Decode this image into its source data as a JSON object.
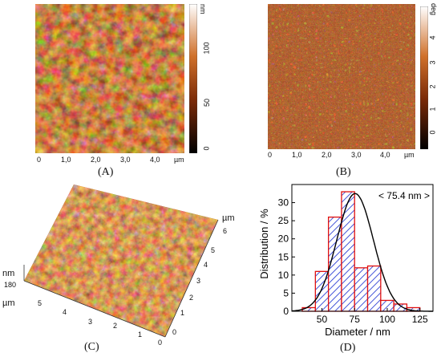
{
  "panels": {
    "A": {
      "label": "(A)",
      "x_ticks": [
        "0",
        "1,0",
        "2,0",
        "3,0",
        "4,0"
      ],
      "x_unit": "µm",
      "cbar_unit": "nm",
      "cbar_ticks": [
        "100",
        "50",
        "0"
      ]
    },
    "B": {
      "label": "(B)",
      "x_ticks": [
        "0",
        "1,0",
        "2,0",
        "3,0",
        "4,0"
      ],
      "x_unit": "µm",
      "cbar_unit": "deg",
      "cbar_ticks": [
        "4",
        "3",
        "2",
        "1",
        "0"
      ]
    },
    "C": {
      "label": "(C)",
      "z_unit": "nm",
      "z_value": "180",
      "x_unit": "µm",
      "y_unit": "µm",
      "x_ticks": [
        "5",
        "4",
        "3",
        "2",
        "1",
        "0"
      ],
      "y_ticks": [
        "6",
        "5",
        "4",
        "3",
        "2",
        "1",
        "0"
      ]
    },
    "D": {
      "label": "(D)",
      "annotation": "< 75.4 nm >",
      "chart_data": {
        "type": "bar",
        "xlabel": "Diameter / nm",
        "ylabel": "Distribution / %",
        "x_ticks": [
          50,
          75,
          100,
          125
        ],
        "y_ticks": [
          0,
          5,
          10,
          15,
          20,
          25,
          30
        ],
        "xlim": [
          27,
          135
        ],
        "ylim": [
          0,
          35
        ],
        "bin_width": 10,
        "bins": [
          {
            "center": 40,
            "value": 1
          },
          {
            "center": 50,
            "value": 11
          },
          {
            "center": 60,
            "value": 26
          },
          {
            "center": 70,
            "value": 33
          },
          {
            "center": 80,
            "value": 12
          },
          {
            "center": 90,
            "value": 12.5
          },
          {
            "center": 100,
            "value": 3
          },
          {
            "center": 110,
            "value": 2
          },
          {
            "center": 120,
            "value": 1
          }
        ],
        "fit": {
          "type": "gaussian",
          "mean": 75.4,
          "amplitude": 32.5,
          "sigma": 14
        }
      }
    }
  }
}
